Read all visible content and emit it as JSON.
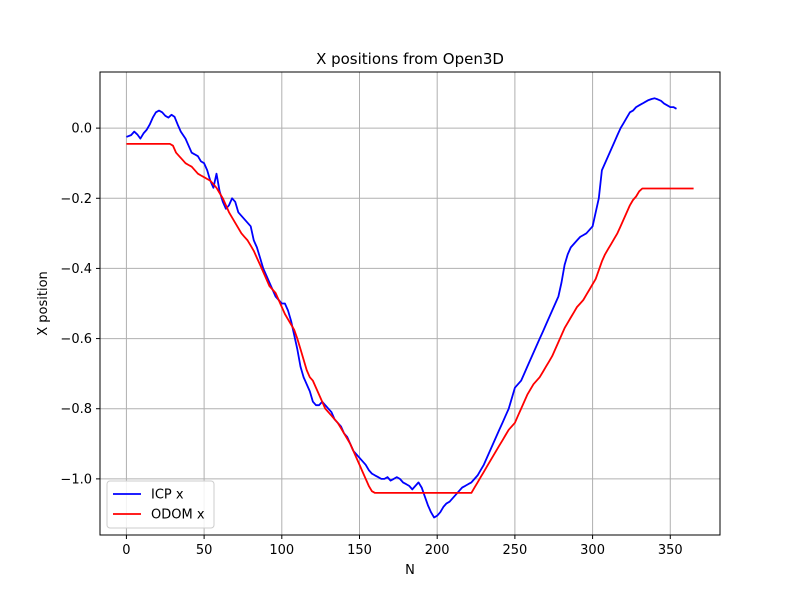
{
  "chart_data": {
    "type": "line",
    "title": "X positions from Open3D",
    "xlabel": "N",
    "ylabel": "X position",
    "xlim": [
      -17,
      382
    ],
    "ylim": [
      -1.16,
      0.16
    ],
    "xticks": [
      0,
      50,
      100,
      150,
      200,
      250,
      300,
      350
    ],
    "xtick_labels": [
      "0",
      "50",
      "100",
      "150",
      "200",
      "250",
      "300",
      "350"
    ],
    "yticks": [
      0.0,
      -0.2,
      -0.4,
      -0.6,
      -0.8,
      -1.0
    ],
    "ytick_labels": [
      "0.0",
      "−0.2",
      "−0.4",
      "−0.6",
      "−0.8",
      "−1.0"
    ],
    "grid": true,
    "legend_position": "lower-left",
    "series": [
      {
        "name": "ICP x",
        "color": "#0000ff",
        "points": [
          [
            0,
            -0.025
          ],
          [
            3,
            -0.02
          ],
          [
            5,
            -0.01
          ],
          [
            7,
            -0.018
          ],
          [
            9,
            -0.03
          ],
          [
            11,
            -0.015
          ],
          [
            13,
            -0.005
          ],
          [
            15,
            0.01
          ],
          [
            17,
            0.03
          ],
          [
            19,
            0.045
          ],
          [
            21,
            0.05
          ],
          [
            23,
            0.045
          ],
          [
            25,
            0.035
          ],
          [
            27,
            0.03
          ],
          [
            29,
            0.038
          ],
          [
            31,
            0.032
          ],
          [
            33,
            0.01
          ],
          [
            35,
            -0.01
          ],
          [
            38,
            -0.03
          ],
          [
            40,
            -0.05
          ],
          [
            42,
            -0.07
          ],
          [
            44,
            -0.075
          ],
          [
            46,
            -0.08
          ],
          [
            48,
            -0.095
          ],
          [
            50,
            -0.1
          ],
          [
            52,
            -0.12
          ],
          [
            54,
            -0.15
          ],
          [
            56,
            -0.17
          ],
          [
            58,
            -0.13
          ],
          [
            60,
            -0.18
          ],
          [
            62,
            -0.21
          ],
          [
            64,
            -0.23
          ],
          [
            66,
            -0.22
          ],
          [
            68,
            -0.2
          ],
          [
            70,
            -0.21
          ],
          [
            72,
            -0.24
          ],
          [
            74,
            -0.25
          ],
          [
            76,
            -0.26
          ],
          [
            78,
            -0.27
          ],
          [
            80,
            -0.28
          ],
          [
            82,
            -0.32
          ],
          [
            84,
            -0.34
          ],
          [
            86,
            -0.37
          ],
          [
            88,
            -0.4
          ],
          [
            90,
            -0.42
          ],
          [
            92,
            -0.44
          ],
          [
            94,
            -0.46
          ],
          [
            96,
            -0.48
          ],
          [
            98,
            -0.49
          ],
          [
            100,
            -0.5
          ],
          [
            102,
            -0.5
          ],
          [
            104,
            -0.52
          ],
          [
            106,
            -0.55
          ],
          [
            108,
            -0.59
          ],
          [
            110,
            -0.63
          ],
          [
            112,
            -0.68
          ],
          [
            114,
            -0.71
          ],
          [
            116,
            -0.73
          ],
          [
            118,
            -0.75
          ],
          [
            120,
            -0.78
          ],
          [
            122,
            -0.79
          ],
          [
            124,
            -0.79
          ],
          [
            126,
            -0.78
          ],
          [
            128,
            -0.79
          ],
          [
            130,
            -0.8
          ],
          [
            132,
            -0.81
          ],
          [
            134,
            -0.83
          ],
          [
            136,
            -0.84
          ],
          [
            138,
            -0.85
          ],
          [
            140,
            -0.87
          ],
          [
            142,
            -0.88
          ],
          [
            144,
            -0.9
          ],
          [
            146,
            -0.92
          ],
          [
            148,
            -0.93
          ],
          [
            150,
            -0.94
          ],
          [
            152,
            -0.95
          ],
          [
            154,
            -0.96
          ],
          [
            156,
            -0.975
          ],
          [
            158,
            -0.985
          ],
          [
            160,
            -0.99
          ],
          [
            162,
            -0.995
          ],
          [
            164,
            -1.0
          ],
          [
            166,
            -1.0
          ],
          [
            168,
            -0.995
          ],
          [
            170,
            -1.005
          ],
          [
            172,
            -1.0
          ],
          [
            174,
            -0.995
          ],
          [
            176,
            -1.0
          ],
          [
            178,
            -1.01
          ],
          [
            180,
            -1.015
          ],
          [
            182,
            -1.02
          ],
          [
            184,
            -1.03
          ],
          [
            186,
            -1.02
          ],
          [
            188,
            -1.01
          ],
          [
            190,
            -1.025
          ],
          [
            192,
            -1.05
          ],
          [
            194,
            -1.075
          ],
          [
            196,
            -1.095
          ],
          [
            198,
            -1.11
          ],
          [
            200,
            -1.105
          ],
          [
            202,
            -1.095
          ],
          [
            204,
            -1.08
          ],
          [
            206,
            -1.07
          ],
          [
            208,
            -1.065
          ],
          [
            210,
            -1.055
          ],
          [
            212,
            -1.045
          ],
          [
            214,
            -1.035
          ],
          [
            216,
            -1.025
          ],
          [
            218,
            -1.02
          ],
          [
            220,
            -1.015
          ],
          [
            222,
            -1.01
          ],
          [
            224,
            -1.0
          ],
          [
            226,
            -0.99
          ],
          [
            228,
            -0.975
          ],
          [
            230,
            -0.96
          ],
          [
            232,
            -0.94
          ],
          [
            234,
            -0.92
          ],
          [
            236,
            -0.9
          ],
          [
            238,
            -0.88
          ],
          [
            240,
            -0.86
          ],
          [
            242,
            -0.84
          ],
          [
            244,
            -0.82
          ],
          [
            246,
            -0.8
          ],
          [
            248,
            -0.77
          ],
          [
            250,
            -0.74
          ],
          [
            252,
            -0.73
          ],
          [
            254,
            -0.72
          ],
          [
            256,
            -0.7
          ],
          [
            258,
            -0.68
          ],
          [
            260,
            -0.66
          ],
          [
            262,
            -0.64
          ],
          [
            264,
            -0.62
          ],
          [
            266,
            -0.6
          ],
          [
            268,
            -0.58
          ],
          [
            270,
            -0.56
          ],
          [
            272,
            -0.54
          ],
          [
            274,
            -0.52
          ],
          [
            276,
            -0.5
          ],
          [
            278,
            -0.48
          ],
          [
            280,
            -0.44
          ],
          [
            282,
            -0.39
          ],
          [
            284,
            -0.36
          ],
          [
            286,
            -0.34
          ],
          [
            288,
            -0.33
          ],
          [
            290,
            -0.32
          ],
          [
            292,
            -0.31
          ],
          [
            294,
            -0.305
          ],
          [
            296,
            -0.3
          ],
          [
            298,
            -0.29
          ],
          [
            300,
            -0.28
          ],
          [
            302,
            -0.24
          ],
          [
            304,
            -0.2
          ],
          [
            306,
            -0.12
          ],
          [
            308,
            -0.1
          ],
          [
            310,
            -0.08
          ],
          [
            312,
            -0.06
          ],
          [
            314,
            -0.04
          ],
          [
            316,
            -0.02
          ],
          [
            318,
            0.0
          ],
          [
            320,
            0.015
          ],
          [
            322,
            0.03
          ],
          [
            324,
            0.045
          ],
          [
            326,
            0.05
          ],
          [
            328,
            0.06
          ],
          [
            330,
            0.065
          ],
          [
            332,
            0.07
          ],
          [
            334,
            0.075
          ],
          [
            336,
            0.08
          ],
          [
            338,
            0.083
          ],
          [
            340,
            0.085
          ],
          [
            342,
            0.082
          ],
          [
            344,
            0.078
          ],
          [
            346,
            0.07
          ],
          [
            348,
            0.065
          ],
          [
            350,
            0.06
          ],
          [
            352,
            0.06
          ],
          [
            354,
            0.055
          ]
        ]
      },
      {
        "name": "ODOM x",
        "color": "#ff0000",
        "points": [
          [
            0,
            -0.045
          ],
          [
            28,
            -0.045
          ],
          [
            30,
            -0.05
          ],
          [
            32,
            -0.07
          ],
          [
            34,
            -0.08
          ],
          [
            36,
            -0.09
          ],
          [
            38,
            -0.1
          ],
          [
            40,
            -0.105
          ],
          [
            42,
            -0.11
          ],
          [
            44,
            -0.12
          ],
          [
            46,
            -0.13
          ],
          [
            48,
            -0.135
          ],
          [
            50,
            -0.14
          ],
          [
            52,
            -0.145
          ],
          [
            54,
            -0.15
          ],
          [
            56,
            -0.16
          ],
          [
            58,
            -0.17
          ],
          [
            60,
            -0.185
          ],
          [
            62,
            -0.2
          ],
          [
            64,
            -0.22
          ],
          [
            66,
            -0.24
          ],
          [
            68,
            -0.255
          ],
          [
            70,
            -0.27
          ],
          [
            72,
            -0.285
          ],
          [
            74,
            -0.3
          ],
          [
            76,
            -0.31
          ],
          [
            78,
            -0.32
          ],
          [
            80,
            -0.335
          ],
          [
            82,
            -0.35
          ],
          [
            84,
            -0.37
          ],
          [
            86,
            -0.39
          ],
          [
            88,
            -0.41
          ],
          [
            90,
            -0.43
          ],
          [
            92,
            -0.45
          ],
          [
            94,
            -0.46
          ],
          [
            96,
            -0.47
          ],
          [
            98,
            -0.49
          ],
          [
            100,
            -0.51
          ],
          [
            102,
            -0.53
          ],
          [
            104,
            -0.545
          ],
          [
            106,
            -0.56
          ],
          [
            108,
            -0.575
          ],
          [
            110,
            -0.6
          ],
          [
            112,
            -0.63
          ],
          [
            114,
            -0.66
          ],
          [
            116,
            -0.69
          ],
          [
            118,
            -0.71
          ],
          [
            120,
            -0.72
          ],
          [
            122,
            -0.74
          ],
          [
            124,
            -0.76
          ],
          [
            126,
            -0.78
          ],
          [
            128,
            -0.8
          ],
          [
            130,
            -0.81
          ],
          [
            132,
            -0.82
          ],
          [
            134,
            -0.83
          ],
          [
            136,
            -0.84
          ],
          [
            138,
            -0.855
          ],
          [
            140,
            -0.87
          ],
          [
            142,
            -0.885
          ],
          [
            144,
            -0.9
          ],
          [
            146,
            -0.92
          ],
          [
            148,
            -0.94
          ],
          [
            150,
            -0.96
          ],
          [
            152,
            -0.98
          ],
          [
            154,
            -1.0
          ],
          [
            156,
            -1.02
          ],
          [
            158,
            -1.035
          ],
          [
            160,
            -1.04
          ],
          [
            222,
            -1.04
          ],
          [
            224,
            -1.025
          ],
          [
            226,
            -1.01
          ],
          [
            228,
            -0.995
          ],
          [
            230,
            -0.98
          ],
          [
            232,
            -0.965
          ],
          [
            234,
            -0.95
          ],
          [
            236,
            -0.935
          ],
          [
            238,
            -0.92
          ],
          [
            240,
            -0.905
          ],
          [
            242,
            -0.89
          ],
          [
            244,
            -0.875
          ],
          [
            246,
            -0.86
          ],
          [
            248,
            -0.85
          ],
          [
            250,
            -0.84
          ],
          [
            252,
            -0.82
          ],
          [
            254,
            -0.8
          ],
          [
            256,
            -0.78
          ],
          [
            258,
            -0.76
          ],
          [
            260,
            -0.745
          ],
          [
            262,
            -0.73
          ],
          [
            264,
            -0.72
          ],
          [
            266,
            -0.71
          ],
          [
            268,
            -0.695
          ],
          [
            270,
            -0.68
          ],
          [
            272,
            -0.665
          ],
          [
            274,
            -0.65
          ],
          [
            276,
            -0.63
          ],
          [
            278,
            -0.61
          ],
          [
            280,
            -0.59
          ],
          [
            282,
            -0.57
          ],
          [
            284,
            -0.555
          ],
          [
            286,
            -0.54
          ],
          [
            288,
            -0.525
          ],
          [
            290,
            -0.51
          ],
          [
            292,
            -0.5
          ],
          [
            294,
            -0.49
          ],
          [
            296,
            -0.475
          ],
          [
            298,
            -0.46
          ],
          [
            300,
            -0.445
          ],
          [
            302,
            -0.43
          ],
          [
            304,
            -0.405
          ],
          [
            306,
            -0.38
          ],
          [
            308,
            -0.36
          ],
          [
            310,
            -0.345
          ],
          [
            312,
            -0.33
          ],
          [
            314,
            -0.315
          ],
          [
            316,
            -0.3
          ],
          [
            318,
            -0.28
          ],
          [
            320,
            -0.26
          ],
          [
            322,
            -0.24
          ],
          [
            324,
            -0.22
          ],
          [
            326,
            -0.205
          ],
          [
            328,
            -0.195
          ],
          [
            330,
            -0.18
          ],
          [
            332,
            -0.172
          ],
          [
            365,
            -0.172
          ]
        ]
      }
    ]
  }
}
